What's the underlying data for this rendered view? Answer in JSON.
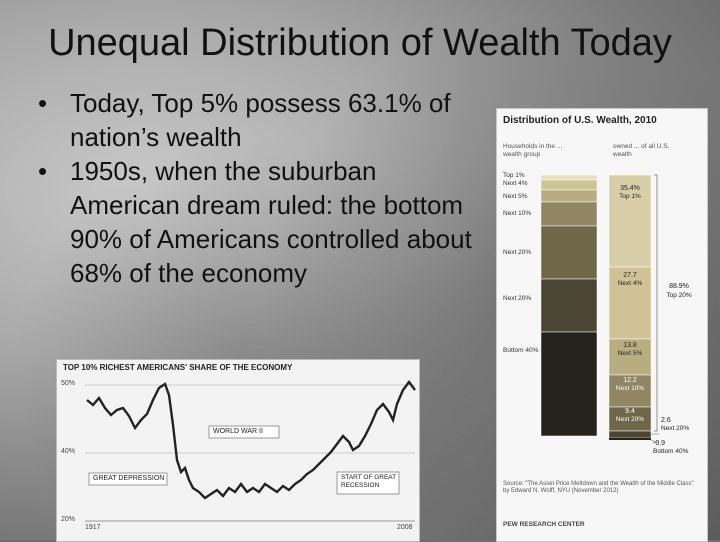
{
  "slide": {
    "title": "Unequal Distribution of Wealth Today",
    "bullets": [
      "Today, Top 5% possess 63.1% of nation’s wealth",
      "1950s, when the suburban American dream ruled: the bottom 90% of Americans controlled about 68% of the economy"
    ]
  },
  "left_chart": {
    "title": "TOP 10% RICHEST AMERICANS' SHARE OF THE ECONOMY",
    "y_ticks": [
      "50%",
      "40%",
      "20%"
    ],
    "x_start": "1917",
    "x_end": "2008",
    "annotations": [
      "WORLD WAR II",
      "GREAT DEPRESSION",
      "START OF GREAT RECESSION"
    ]
  },
  "right_chart": {
    "title": "Distribution of U.S. Wealth, 2010",
    "col_left": "Households in the ... wealth group",
    "col_right": "owned ... of all U.S. wealth",
    "groups": [
      {
        "label": "Top 1%",
        "share": 35.4,
        "color": "#d8cfa8"
      },
      {
        "label": "Next 4%",
        "share": 27.7,
        "color": "#cfc396"
      },
      {
        "label": "Next 5%",
        "share": 13.8,
        "color": "#b8ad80"
      },
      {
        "label": "Next 10%",
        "share": 12.2,
        "color": "#908663"
      },
      {
        "label": "Next 20%",
        "share": 9.4,
        "color": "#6f6748"
      },
      {
        "label": "Next 20%",
        "share": 2.6,
        "color": "#4b4533"
      },
      {
        "label": "Bottom 40%",
        "share": -0.9,
        "color": "#25231b"
      }
    ],
    "right_labels": [
      {
        "value": "35.4%",
        "group": "Top 1%"
      },
      {
        "value": "27.7",
        "group": "Next 4%"
      },
      {
        "value": "13.8",
        "group": "Next 5%"
      },
      {
        "value": "12.2",
        "group": "Next 10%"
      },
      {
        "value": "9.4",
        "group": "Next 20%"
      }
    ],
    "bracket_label": {
      "value": "88.9%",
      "group": "Top 20%"
    },
    "outside_labels": [
      {
        "value": "2.6",
        "group": "Next 20%"
      },
      {
        "value": "-0.9",
        "group": "Bottom 40%"
      }
    ],
    "source": "Source: \"The Asset Price Meltdown and the Wealth of the Middle Class\" by Edward N. Wolff, NYU (November 2012)",
    "brand": "PEW RESEARCH CENTER"
  }
}
